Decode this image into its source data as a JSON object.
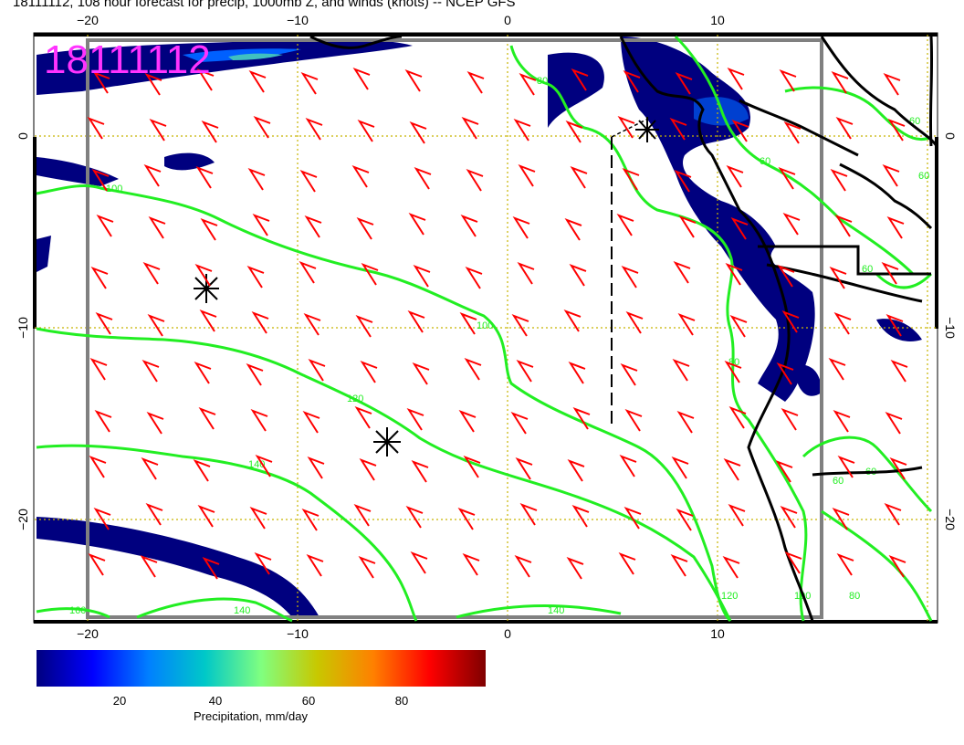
{
  "title": "18111112, 108 hour forecast for precip, 1000mb Z, and winds (knots) -- NCEP GFS",
  "date_stamp": "18111112",
  "map": {
    "lon_ticks_top": [
      "−20",
      "−10",
      "0",
      "10"
    ],
    "lon_ticks_bottom": [
      "−20",
      "−10",
      "0",
      "10"
    ],
    "lat_ticks_left": [
      "0",
      "−10",
      "−20"
    ],
    "lat_ticks_right": [
      "0",
      "−10",
      "−20"
    ],
    "contour_labels": [
      "80",
      "100",
      "100",
      "120",
      "140",
      "160",
      "140",
      "140",
      "120",
      "100",
      "80",
      "80",
      "60",
      "60",
      "60",
      "60",
      "60",
      "60"
    ],
    "colors": {
      "wind_barbs": "#ff0000",
      "height_contours": "#22ee22",
      "coastline": "#000000",
      "grid": "#c8b400",
      "date_stamp": "#ff33ff",
      "frame": "#808080"
    }
  },
  "colorbar": {
    "labels": [
      "20",
      "40",
      "60",
      "80"
    ],
    "title": "Precipitation, mm/day",
    "colors": [
      "#00007f",
      "#0000ff",
      "#0080ff",
      "#00c8c8",
      "#80ff80",
      "#c8c800",
      "#ff8000",
      "#ff0000",
      "#7f0000"
    ]
  }
}
